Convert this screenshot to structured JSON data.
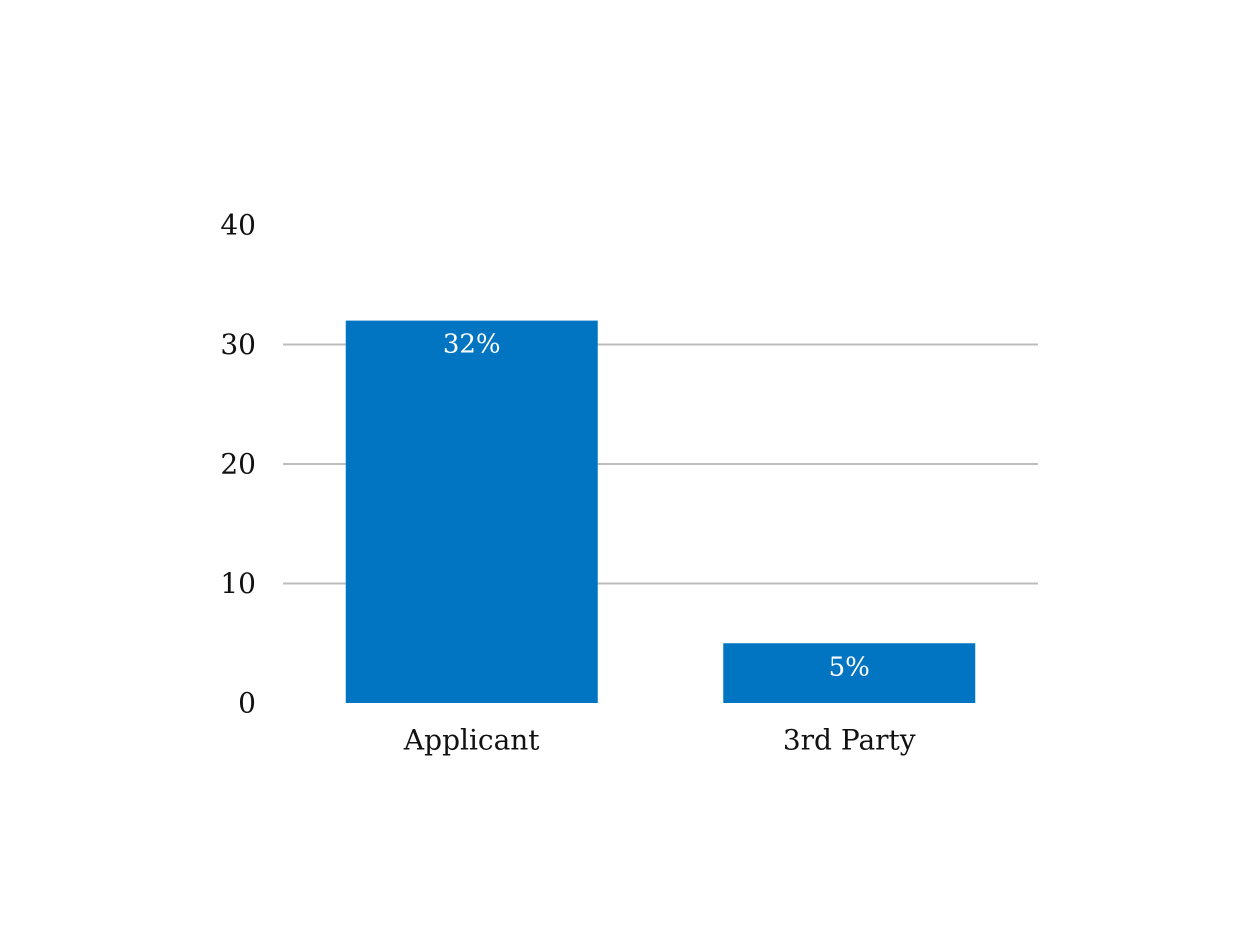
{
  "chart_data": {
    "type": "bar",
    "categories": [
      "Applicant",
      "3rd Party"
    ],
    "values": [
      32,
      5
    ],
    "data_labels": [
      "32%",
      "5%"
    ],
    "title": "",
    "xlabel": "",
    "ylabel": "",
    "ylim": [
      0,
      40
    ],
    "yticks": [
      0,
      10,
      20,
      30,
      40
    ],
    "ytick_labels": [
      "0",
      "10",
      "20",
      "30",
      "40"
    ],
    "grid": true,
    "legend": "none",
    "colors": {
      "bar": "#0275c2",
      "gridline": "#bdbdbd",
      "data_label": "#ffffff",
      "axis_text": "#111111"
    }
  }
}
